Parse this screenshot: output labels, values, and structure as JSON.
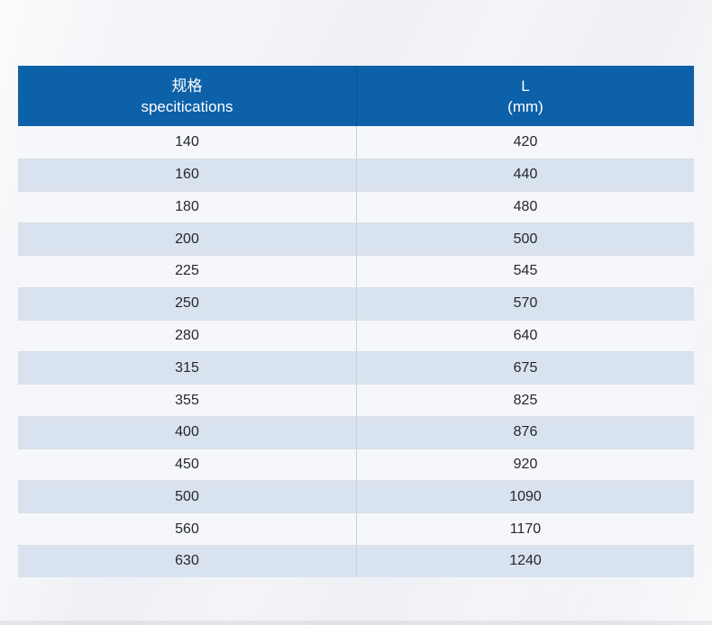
{
  "table": {
    "headers": {
      "col1_line1": "规格",
      "col1_line2": "specitications",
      "col2_line1": "L",
      "col2_line2": "(mm)"
    },
    "rows": [
      {
        "spec": "140",
        "l_mm": "420"
      },
      {
        "spec": "160",
        "l_mm": "440"
      },
      {
        "spec": "180",
        "l_mm": "480"
      },
      {
        "spec": "200",
        "l_mm": "500"
      },
      {
        "spec": "225",
        "l_mm": "545"
      },
      {
        "spec": "250",
        "l_mm": "570"
      },
      {
        "spec": "280",
        "l_mm": "640"
      },
      {
        "spec": "315",
        "l_mm": "675"
      },
      {
        "spec": "355",
        "l_mm": "825"
      },
      {
        "spec": "400",
        "l_mm": "876"
      },
      {
        "spec": "450",
        "l_mm": "920"
      },
      {
        "spec": "500",
        "l_mm": "1090"
      },
      {
        "spec": "560",
        "l_mm": "1170"
      },
      {
        "spec": "630",
        "l_mm": "1240"
      }
    ]
  },
  "colors": {
    "header_bg": "#0d61a8",
    "header_divider": "#0b5392",
    "row_bg": "#f6f7fa",
    "row_alt_bg": "#d9e3f0",
    "row_border": "#dcdee6",
    "col_divider": "#c9cfd9",
    "cell_text": "#25282d",
    "page_bg": "#eff0f5"
  }
}
